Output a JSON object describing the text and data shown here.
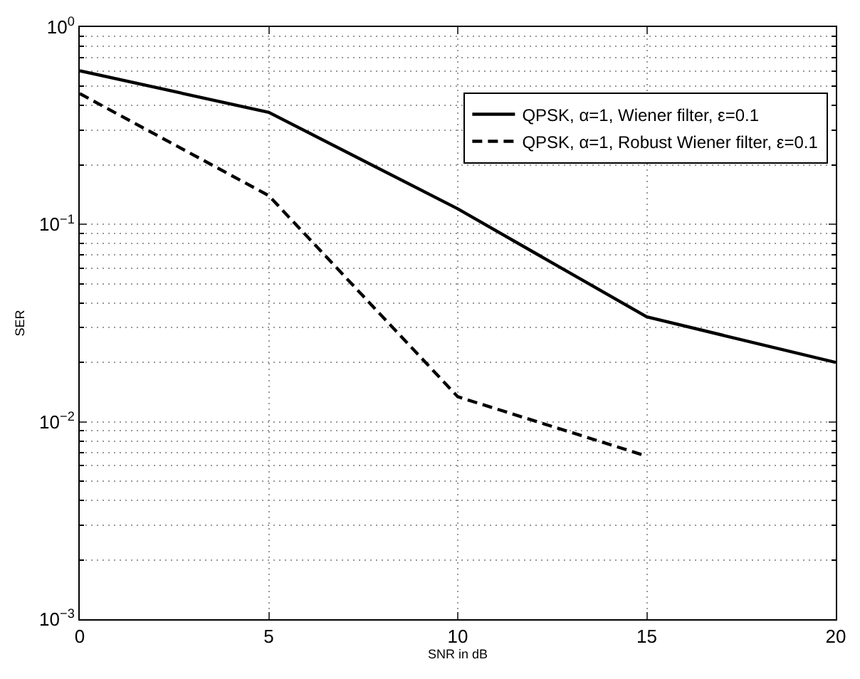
{
  "chart_data": {
    "type": "line",
    "xlabel": "SNR in dB",
    "ylabel": "SER",
    "log": "y",
    "grid": true,
    "legend": "top right",
    "x": [
      0,
      5,
      10,
      15,
      20
    ],
    "xlim": [
      0,
      20
    ],
    "xticks": [
      0,
      5,
      10,
      15,
      20
    ],
    "ylim": [
      0.001,
      1
    ],
    "yticks": [
      {
        "value": 0.001,
        "label": "10$^{−3}$"
      },
      {
        "value": 0.01,
        "label": "10$^{−2}$"
      },
      {
        "value": 0.1,
        "label": "10$^{−1}$"
      },
      {
        "value": 1,
        "label": "10$^{0}$"
      }
    ],
    "series": [
      {
        "name": "QPSK, α=1, Wiener filter, ε=0.1",
        "color": "#000000",
        "line_style": "solid",
        "values": [
          0.6,
          0.37,
          0.12,
          0.034,
          0.02
        ]
      },
      {
        "name": "QPSK, α=1, Robust Wiener filter, ε=0.1",
        "color": "#000000",
        "line_style": "dashed",
        "values": [
          0.46,
          0.14,
          0.0134,
          0.0067,
          null
        ]
      }
    ]
  }
}
